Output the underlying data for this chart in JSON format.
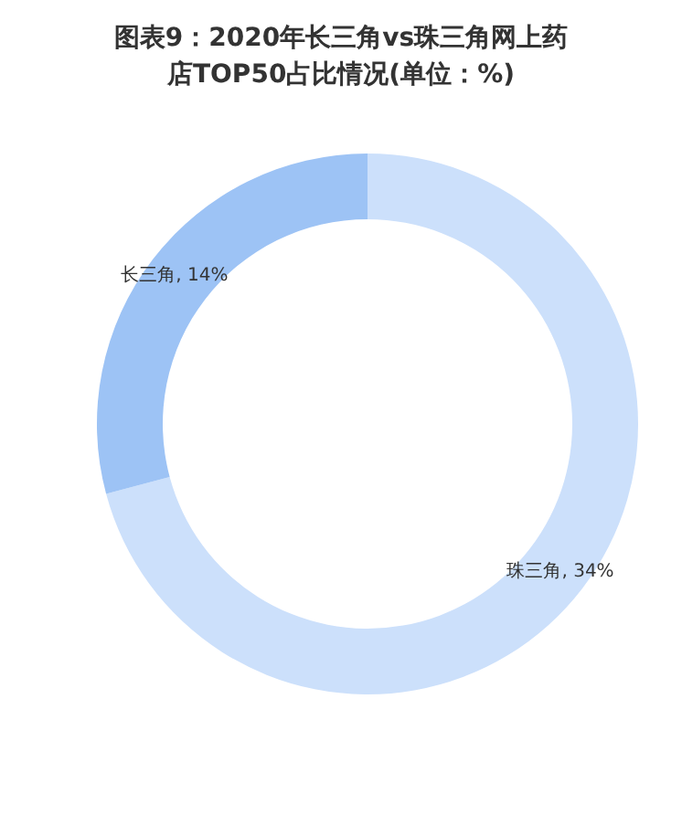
{
  "chart_data": {
    "type": "donut",
    "title": "图表9：2020年长三角vs珠三角网上药店TOP50占比情况(单位：%)",
    "categories": [
      "珠三角",
      "长三角"
    ],
    "values": [
      34,
      14
    ],
    "colors": [
      "#cce0fb",
      "#9dc3f5"
    ],
    "value_labels": [
      "34%",
      "14%"
    ],
    "legend": false
  }
}
